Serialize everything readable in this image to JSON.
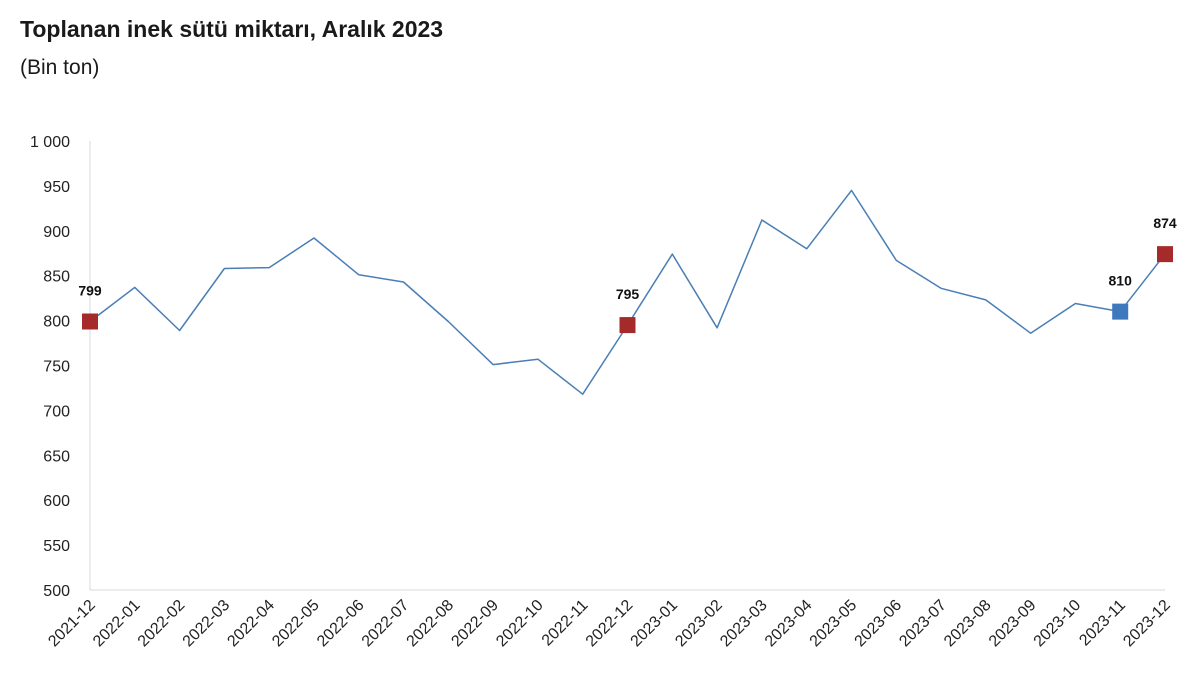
{
  "chart_data": {
    "type": "line",
    "title": "Toplanan inek sütü miktarı, Aralık 2023",
    "subtitle": "(Bin ton)",
    "xlabel": "",
    "ylabel": "",
    "ylim": [
      500,
      1000
    ],
    "yticks": [
      {
        "value": 500,
        "label": "500"
      },
      {
        "value": 550,
        "label": "550"
      },
      {
        "value": 600,
        "label": "600"
      },
      {
        "value": 650,
        "label": "650"
      },
      {
        "value": 700,
        "label": "700"
      },
      {
        "value": 750,
        "label": "750"
      },
      {
        "value": 800,
        "label": "800"
      },
      {
        "value": 850,
        "label": "850"
      },
      {
        "value": 900,
        "label": "900"
      },
      {
        "value": 950,
        "label": "950"
      },
      {
        "value": 1000,
        "label": "1 000"
      }
    ],
    "grid": false,
    "categories": [
      "2021-12",
      "2022-01",
      "2022-02",
      "2022-03",
      "2022-04",
      "2022-05",
      "2022-06",
      "2022-07",
      "2022-08",
      "2022-09",
      "2022-10",
      "2022-11",
      "2022-12",
      "2023-01",
      "2023-02",
      "2023-03",
      "2023-04",
      "2023-05",
      "2023-06",
      "2023-07",
      "2023-08",
      "2023-09",
      "2023-10",
      "2023-11",
      "2023-12"
    ],
    "series": [
      {
        "values": [
          799,
          837,
          789,
          858,
          859,
          892,
          851,
          843,
          799,
          751,
          757,
          718,
          795,
          874,
          792,
          912,
          880,
          945,
          867,
          836,
          823,
          786,
          819,
          810,
          874
        ],
        "color": "#4a7eb5"
      }
    ],
    "markers": [
      {
        "index": 0,
        "label": "799",
        "color": "#a52a2a"
      },
      {
        "index": 12,
        "label": "795",
        "color": "#a52a2a"
      },
      {
        "index": 23,
        "label": "810",
        "color": "#3f79bd"
      },
      {
        "index": 24,
        "label": "874",
        "color": "#a52a2a"
      }
    ]
  }
}
